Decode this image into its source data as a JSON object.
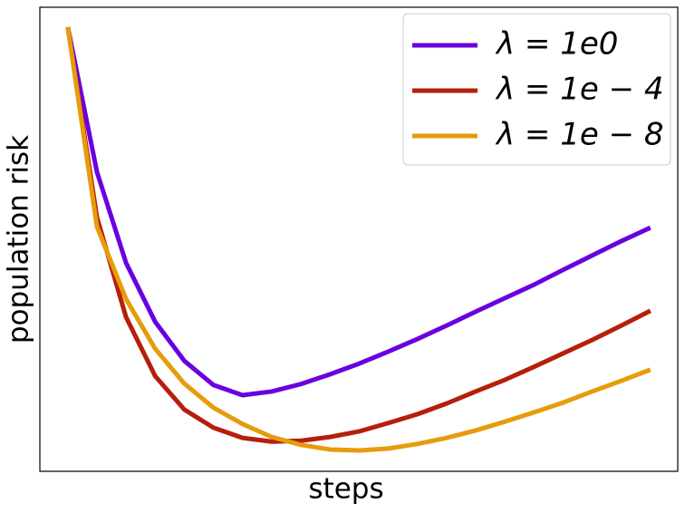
{
  "chart_data": {
    "type": "line",
    "x_label": "steps",
    "y_label": "population risk",
    "x": [
      0,
      5,
      10,
      15,
      20,
      25,
      30,
      35,
      40,
      45,
      50,
      55,
      60,
      65,
      70,
      75,
      80,
      85,
      90,
      95,
      100
    ],
    "xlim": [
      -4.8,
      104.7
    ],
    "ylim": [
      0,
      100
    ],
    "legend": "upper right",
    "series": [
      {
        "name": "λ = 1e0",
        "color": "#6a00e0",
        "values": [
          95.7,
          64.5,
          44.9,
          32.2,
          23.8,
          18.6,
          16.4,
          17.2,
          18.8,
          20.9,
          23.2,
          25.8,
          28.5,
          31.4,
          34.4,
          37.3,
          40.2,
          43.4,
          46.5,
          49.6,
          52.5
        ]
      },
      {
        "name": "λ = 1e − 4",
        "color": "#b51f0b",
        "values": [
          95.7,
          54.7,
          33.2,
          20.5,
          13.3,
          9.4,
          7.2,
          6.4,
          6.6,
          7.4,
          8.6,
          10.4,
          12.3,
          14.6,
          17.2,
          19.7,
          22.5,
          25.4,
          28.3,
          31.4,
          34.6
        ]
      },
      {
        "name": "λ = 1e − 8",
        "color": "#e69c0b",
        "values": [
          95.7,
          52.7,
          37.1,
          26.4,
          18.9,
          13.7,
          10.2,
          7.4,
          5.7,
          4.7,
          4.5,
          4.9,
          5.9,
          7.2,
          8.8,
          10.7,
          12.7,
          14.8,
          17.2,
          19.5,
          21.9
        ]
      }
    ]
  }
}
